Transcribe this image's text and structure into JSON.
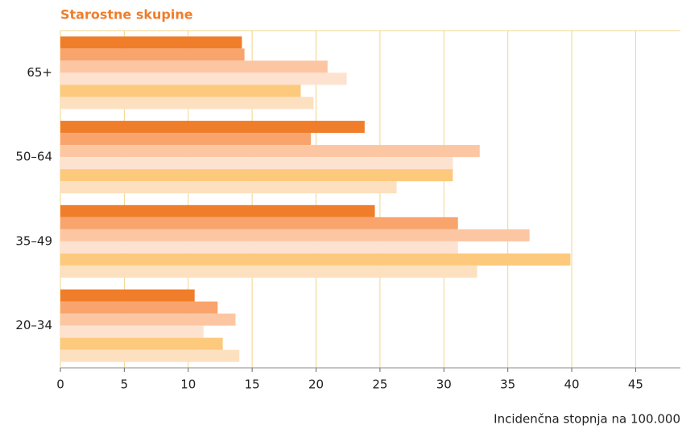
{
  "chart_data": {
    "type": "hbar",
    "title": "Starostne skupine",
    "x_label": "Incidenčna stopnja na 100.000",
    "categories": [
      "65+",
      "50–64",
      "35–49",
      "20–34"
    ],
    "series": [
      {
        "color": "#f07d2a",
        "values": [
          14.2,
          23.8,
          24.6,
          10.5
        ]
      },
      {
        "color": "#f8a46c",
        "values": [
          14.4,
          19.6,
          31.1,
          12.3
        ]
      },
      {
        "color": "#fcc6a3",
        "values": [
          20.9,
          32.8,
          36.7,
          13.7
        ]
      },
      {
        "color": "#fde2d0",
        "values": [
          22.4,
          30.7,
          31.1,
          11.2
        ]
      },
      {
        "color": "#fdc97c",
        "values": [
          18.8,
          30.7,
          39.9,
          12.7
        ]
      },
      {
        "color": "#fde0bf",
        "values": [
          19.8,
          26.3,
          32.6,
          14.0
        ]
      }
    ],
    "xlim": [
      0,
      48.5
    ],
    "xticks": [
      0,
      5,
      10,
      15,
      20,
      25,
      30,
      35,
      40,
      45
    ],
    "grid": true
  }
}
